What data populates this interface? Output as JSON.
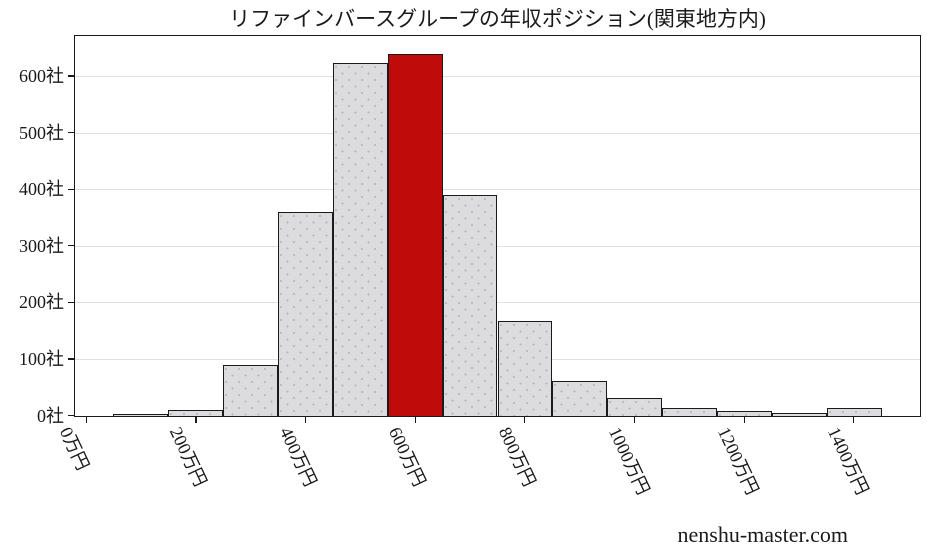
{
  "title": "リファインバースグループの年収ポジション(関東地方内)",
  "watermark": "nenshu-master.com",
  "colors": {
    "background": "#ffffff",
    "text": "#1a1a1a",
    "axis": "#1a1a1a",
    "grid": "#e0e0e0",
    "bar": "#dcdcde",
    "bar_dot": "#b2b2b8",
    "bar_edge": "#1a1a1a",
    "highlight": "#c00b0b"
  },
  "chart_data": {
    "type": "bar",
    "title": "リファインバースグループの年収ポジション(関東地方内)",
    "xlabel": "",
    "ylabel": "",
    "bin_width": 100,
    "bin_centers": [
      100,
      200,
      300,
      400,
      500,
      600,
      700,
      800,
      900,
      1000,
      1100,
      1200,
      1300,
      1400
    ],
    "values": [
      3,
      11,
      90,
      360,
      622,
      638,
      390,
      167,
      62,
      32,
      15,
      8,
      5,
      15
    ],
    "highlight_center": 600,
    "highlight_value": 638,
    "x_tick_values": [
      0,
      200,
      400,
      600,
      800,
      1000,
      1200,
      1400
    ],
    "x_tick_labels": [
      "0万円",
      "200万円",
      "400万円",
      "600万円",
      "800万円",
      "1000万円",
      "1200万円",
      "1400万円"
    ],
    "y_tick_values": [
      0,
      100,
      200,
      300,
      400,
      500,
      600
    ],
    "y_tick_labels": [
      "0社",
      "100社",
      "200社",
      "300社",
      "400社",
      "500社",
      "600社"
    ],
    "xlim": [
      -20,
      1520
    ],
    "ylim": [
      0,
      670
    ],
    "grid": "horizontal",
    "legend": "none"
  }
}
